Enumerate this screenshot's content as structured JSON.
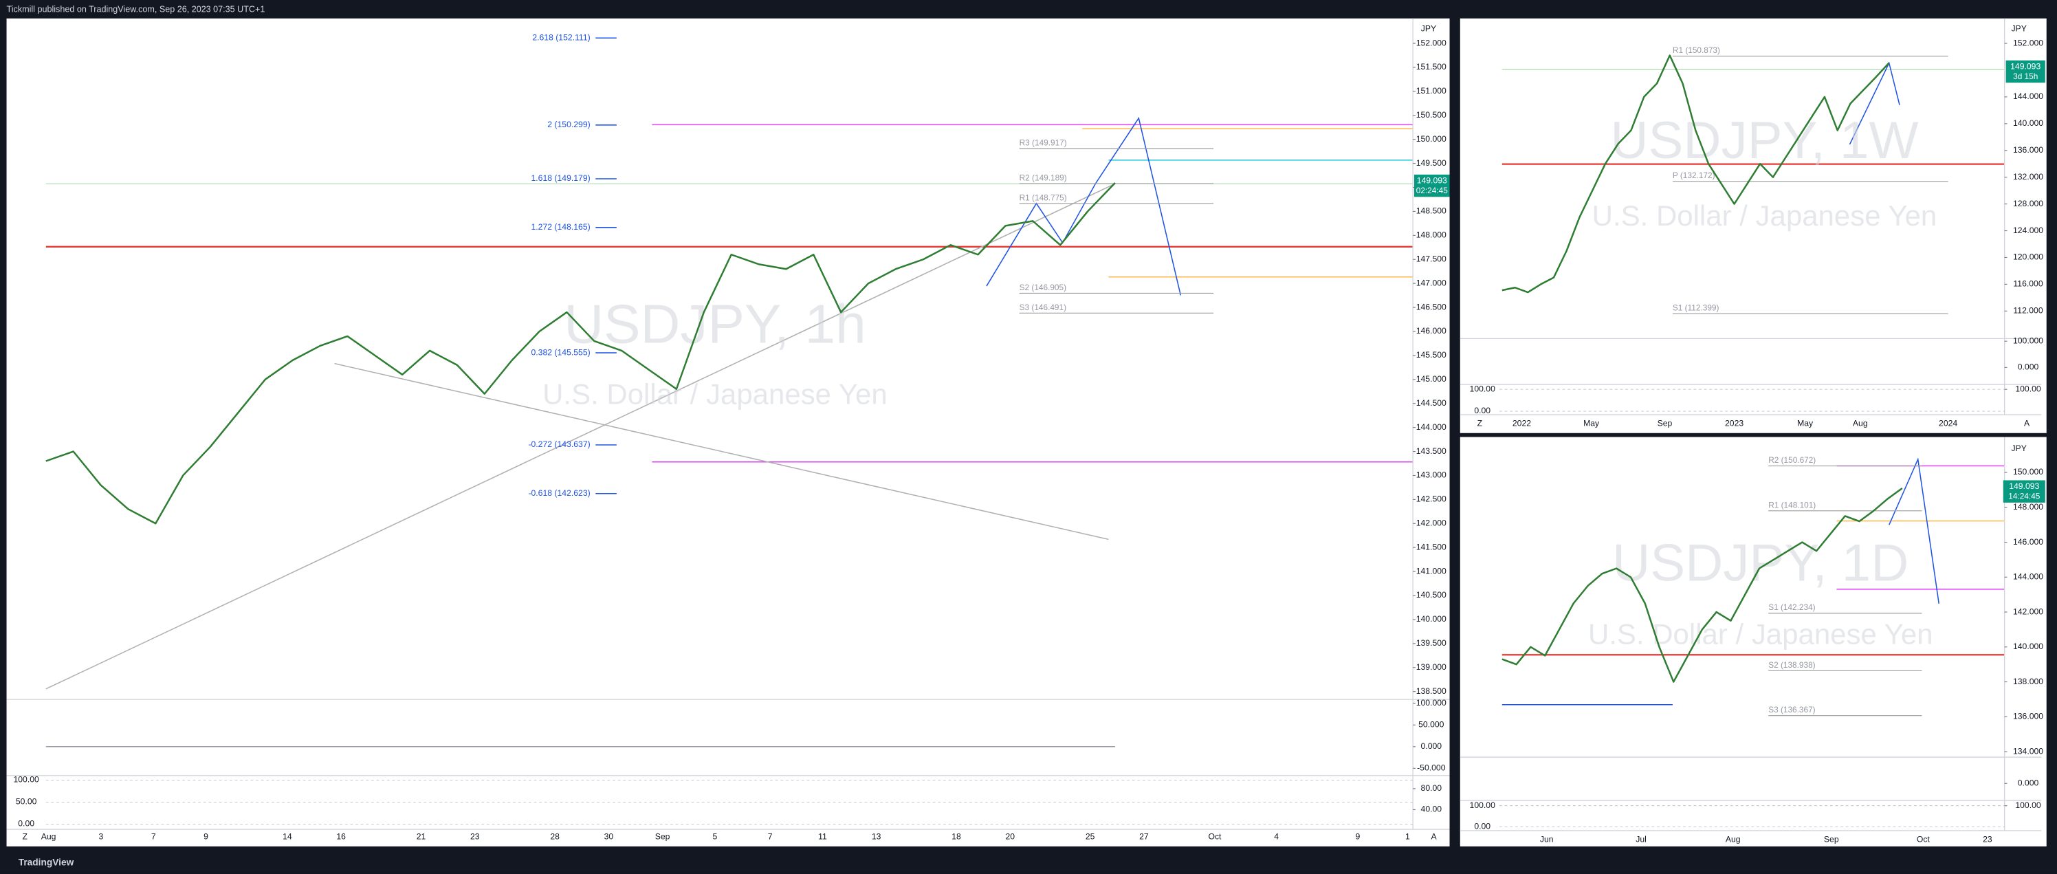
{
  "header": {
    "publisher": "Tickmill published on TradingView.com, Sep 26, 2023 07:35 UTC+1"
  },
  "footer": {
    "brand": "TradingView"
  },
  "ui": {
    "left_button": "Z",
    "right_button": "A"
  },
  "chart_data": [
    {
      "type": "line",
      "title": "USDJPY, 1h",
      "subtitle": "U.S. Dollar / Japanese Yen",
      "currency": "JPY",
      "color": "#2e7d32",
      "categories": [
        null,
        null,
        null,
        null,
        null,
        null,
        null,
        null,
        null,
        null,
        null,
        null,
        null,
        null,
        null,
        null,
        null,
        null,
        null,
        null,
        null,
        null,
        null,
        null,
        null,
        null,
        null,
        null,
        null,
        null,
        null,
        null,
        null,
        null,
        null,
        null,
        null,
        null,
        null,
        null
      ],
      "values": [
        143.3,
        143.5,
        142.8,
        142.3,
        142.0,
        143.0,
        143.6,
        144.3,
        145.0,
        145.4,
        145.7,
        145.9,
        145.5,
        145.1,
        145.6,
        145.3,
        144.7,
        145.4,
        146.0,
        146.4,
        145.8,
        145.6,
        145.2,
        144.8,
        146.4,
        147.6,
        147.4,
        147.3,
        147.6,
        146.4,
        147.0,
        147.3,
        147.5,
        147.8,
        147.6,
        148.2,
        148.3,
        147.8,
        148.5,
        149.093
      ],
      "ylim": [
        138.3,
        152.5
      ],
      "yticks": [
        {
          "value": 138.5,
          "label": "138.500"
        },
        {
          "value": 139,
          "label": "139.000"
        },
        {
          "value": 139.5,
          "label": "139.500"
        },
        {
          "value": 140,
          "label": "140.000"
        },
        {
          "value": 140.5,
          "label": "140.500"
        },
        {
          "value": 141,
          "label": "141.000"
        },
        {
          "value": 141.5,
          "label": "141.500"
        },
        {
          "value": 142,
          "label": "142.000"
        },
        {
          "value": 142.5,
          "label": "142.500"
        },
        {
          "value": 143,
          "label": "143.000"
        },
        {
          "value": 143.5,
          "label": "143.500"
        },
        {
          "value": 144,
          "label": "144.000"
        },
        {
          "value": 144.5,
          "label": "144.500"
        },
        {
          "value": 145,
          "label": "145.000"
        },
        {
          "value": 145.5,
          "label": "145.500"
        },
        {
          "value": 146,
          "label": "146.000"
        },
        {
          "value": 146.5,
          "label": "146.500"
        },
        {
          "value": 147,
          "label": "147.000"
        },
        {
          "value": 147.5,
          "label": "147.500"
        },
        {
          "value": 148,
          "label": "148.000"
        },
        {
          "value": 148.5,
          "label": "148.500"
        },
        {
          "value": 149,
          "label": "149.000"
        },
        {
          "value": 149.5,
          "label": "149.500"
        },
        {
          "value": 150,
          "label": "150.000"
        },
        {
          "value": 150.5,
          "label": "150.500"
        },
        {
          "value": 151,
          "label": "151.000"
        },
        {
          "value": 151.5,
          "label": "151.500"
        },
        {
          "value": 152,
          "label": "152.000"
        }
      ],
      "last_price": 149.093,
      "countdown": "02:24:45",
      "x_labels": [
        "Aug",
        "3",
        "7",
        "9",
        "14",
        "16",
        "21",
        "23",
        "28",
        "30",
        "Sep",
        "5",
        "7",
        "11",
        "13",
        "18",
        "20",
        "25",
        "27",
        "Oct",
        "4",
        "9",
        "1"
      ],
      "fib_levels": [
        {
          "text": "2.618 (152.111)",
          "value": 152.111
        },
        {
          "text": "2 (150.299)",
          "value": 150.299
        },
        {
          "text": "1.618 (149.179)",
          "value": 149.179
        },
        {
          "text": "1.272 (148.165)",
          "value": 148.165
        },
        {
          "text": "0.382 (145.555)",
          "value": 145.555
        },
        {
          "text": "-0.272 (143.637)",
          "value": 143.637
        },
        {
          "text": "-0.618 (142.623)",
          "value": 142.623
        }
      ],
      "pivots": [
        {
          "text": "R3 (149.917)",
          "value": 149.917
        },
        {
          "text": "R2 (149.189)",
          "value": 149.189
        },
        {
          "text": "R1 (148.775)",
          "value": 148.775
        },
        {
          "text": "S2 (146.905)",
          "value": 146.905
        },
        {
          "text": "S3 (146.491)",
          "value": 146.491
        }
      ],
      "oscillators": [
        {
          "ylim": [
            -60,
            115
          ],
          "yticks": [
            {
              "value": 100,
              "label": "100.000"
            },
            {
              "value": 50,
              "label": "50.000"
            },
            {
              "value": 0,
              "label": "0.000"
            },
            {
              "value": -50,
              "label": "-50.000"
            }
          ]
        },
        {
          "ylim": [
            0,
            100
          ],
          "yticks": [
            {
              "value": 80,
              "label": "80.00"
            },
            {
              "value": 40,
              "label": "40.00"
            }
          ],
          "y2lim": [
            0,
            100
          ],
          "y2ticks": [
            {
              "value": 100,
              "label": "100.00"
            },
            {
              "value": 50,
              "label": "50.00"
            },
            {
              "value": 0,
              "label": "0.00"
            }
          ]
        }
      ]
    },
    {
      "type": "line",
      "title": "USDJPY, 1W",
      "subtitle": "U.S. Dollar / Japanese Yen",
      "currency": "JPY",
      "color": "#2e7d32",
      "categories": [
        null,
        null,
        null,
        null,
        null,
        null,
        null,
        null,
        null,
        null,
        null,
        null,
        null,
        null,
        null,
        null,
        null,
        null,
        null,
        null,
        null,
        null,
        null,
        null,
        null,
        null,
        null,
        null,
        null,
        null,
        null
      ],
      "values": [
        115.1,
        115.5,
        114.8,
        116,
        117,
        121,
        126,
        130,
        134,
        137,
        139,
        144,
        146,
        150.2,
        146,
        139,
        134,
        131,
        128,
        131,
        134,
        132,
        135,
        138,
        141,
        144,
        139,
        143,
        145,
        147,
        149.093
      ],
      "ylim": [
        110,
        154
      ],
      "yticks": [
        {
          "value": 112,
          "label": "112.000"
        },
        {
          "value": 116,
          "label": "116.000"
        },
        {
          "value": 120,
          "label": "120.000"
        },
        {
          "value": 124,
          "label": "124.000"
        },
        {
          "value": 128,
          "label": "128.000"
        },
        {
          "value": 132,
          "label": "132.000"
        },
        {
          "value": 136,
          "label": "136.000"
        },
        {
          "value": 140,
          "label": "140.000"
        },
        {
          "value": 144,
          "label": "144.000"
        },
        {
          "value": 152,
          "label": "152.000"
        }
      ],
      "last_price": 149.093,
      "countdown": "3d 15h",
      "x_labels": [
        "2022",
        "May",
        "Sep",
        "2023",
        "May",
        "Aug",
        "2024"
      ],
      "pivots": [
        {
          "text": "R1 (150.873)",
          "value": 150.873
        },
        {
          "text": "P (132.172)",
          "value": 132.172
        },
        {
          "text": "S1 (112.399)",
          "value": 112.399
        }
      ],
      "oscillators": [
        {
          "ylim": [
            -60,
            110
          ],
          "yticks": [
            {
              "value": 100,
              "label": "100.000"
            },
            {
              "value": 0,
              "label": "0.000"
            }
          ]
        },
        {
          "ylim": [
            -10,
            110
          ],
          "yticks": [
            {
              "value": 100,
              "label": "100.00"
            }
          ],
          "y2lim": [
            -10,
            110
          ],
          "y2ticks": [
            {
              "value": 100,
              "label": "100.00"
            },
            {
              "value": 0,
              "label": "0.00"
            }
          ]
        }
      ]
    },
    {
      "type": "line",
      "title": "USDJPY, 1D",
      "subtitle": "U.S. Dollar / Japanese Yen",
      "currency": "JPY",
      "color": "#2e7d32",
      "categories": [
        null,
        null,
        null,
        null,
        null,
        null,
        null,
        null,
        null,
        null,
        null,
        null,
        null,
        null,
        null,
        null,
        null,
        null,
        null,
        null,
        null,
        null,
        null,
        null,
        null,
        null,
        null,
        null,
        null
      ],
      "values": [
        139.3,
        139.0,
        140.0,
        139.5,
        141.0,
        142.5,
        143.5,
        144.2,
        144.5,
        144.0,
        142.5,
        140.0,
        138.0,
        139.5,
        141.0,
        142.0,
        141.5,
        143.0,
        144.5,
        145.0,
        145.5,
        146.0,
        145.5,
        146.5,
        147.5,
        147.2,
        147.8,
        148.5,
        149.093
      ],
      "ylim": [
        133,
        151
      ],
      "yticks": [
        {
          "value": 134,
          "label": "134.000"
        },
        {
          "value": 136,
          "label": "136.000"
        },
        {
          "value": 138,
          "label": "138.000"
        },
        {
          "value": 140,
          "label": "140.000"
        },
        {
          "value": 142,
          "label": "142.000"
        },
        {
          "value": 144,
          "label": "144.000"
        },
        {
          "value": 146,
          "label": "146.000"
        },
        {
          "value": 148,
          "label": "148.000"
        },
        {
          "value": 150,
          "label": "150.000"
        }
      ],
      "last_price": 149.093,
      "countdown": "14:24:45",
      "x_labels": [
        "Jun",
        "Jul",
        "Aug",
        "Sep",
        "Oct",
        "23"
      ],
      "pivots": [
        {
          "text": "R2 (150.672)",
          "value": 150.672
        },
        {
          "text": "R1 (148.101)",
          "value": 148.101
        },
        {
          "text": "S1 (142.234)",
          "value": 142.234
        },
        {
          "text": "S2 (138.938)",
          "value": 138.938
        },
        {
          "text": "S3 (136.367)",
          "value": 136.367
        }
      ],
      "oscillators": [
        {
          "ylim": [
            -100,
            100
          ],
          "yticks": [
            {
              "value": 0,
              "label": "0.000"
            }
          ]
        },
        {
          "ylim": [
            -10,
            110
          ],
          "yticks": [
            {
              "value": 100,
              "label": "100.00"
            }
          ],
          "y2lim": [
            -10,
            110
          ],
          "y2ticks": [
            {
              "value": 100,
              "label": "100.00"
            },
            {
              "value": 0,
              "label": "0.00"
            }
          ]
        }
      ]
    }
  ]
}
